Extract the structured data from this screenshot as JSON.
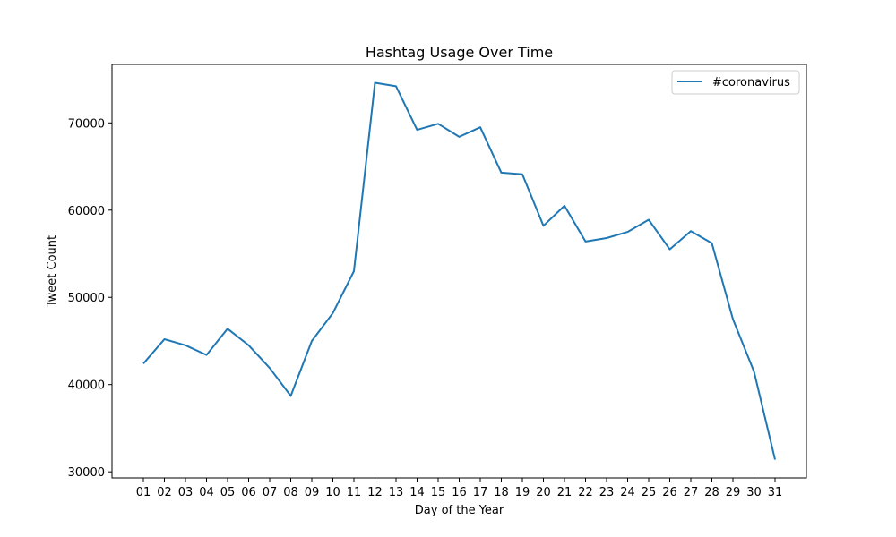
{
  "chart_data": {
    "type": "line",
    "title": "Hashtag Usage Over Time",
    "xlabel": "Day of the Year",
    "ylabel": "Tweet Count",
    "categories": [
      "01",
      "02",
      "03",
      "04",
      "05",
      "06",
      "07",
      "08",
      "09",
      "10",
      "11",
      "12",
      "13",
      "14",
      "15",
      "16",
      "17",
      "18",
      "19",
      "20",
      "21",
      "22",
      "23",
      "24",
      "25",
      "26",
      "27",
      "28",
      "29",
      "30",
      "31"
    ],
    "series": [
      {
        "name": "#coronavirus",
        "color": "#1f77b4",
        "values": [
          42400,
          45200,
          44500,
          43400,
          46400,
          44500,
          41900,
          38700,
          45000,
          48200,
          53000,
          74600,
          74200,
          69200,
          69900,
          68400,
          69500,
          64300,
          64100,
          58200,
          60500,
          56400,
          56800,
          57500,
          58900,
          55500,
          57600,
          56200,
          47500,
          41500,
          31400
        ]
      }
    ],
    "yticks": [
      30000,
      40000,
      50000,
      60000,
      70000
    ],
    "ytick_labels": [
      "30000",
      "40000",
      "50000",
      "60000",
      "70000"
    ],
    "ylim": [
      29300,
      76700
    ],
    "grid": false,
    "legend_position": "top-right"
  }
}
